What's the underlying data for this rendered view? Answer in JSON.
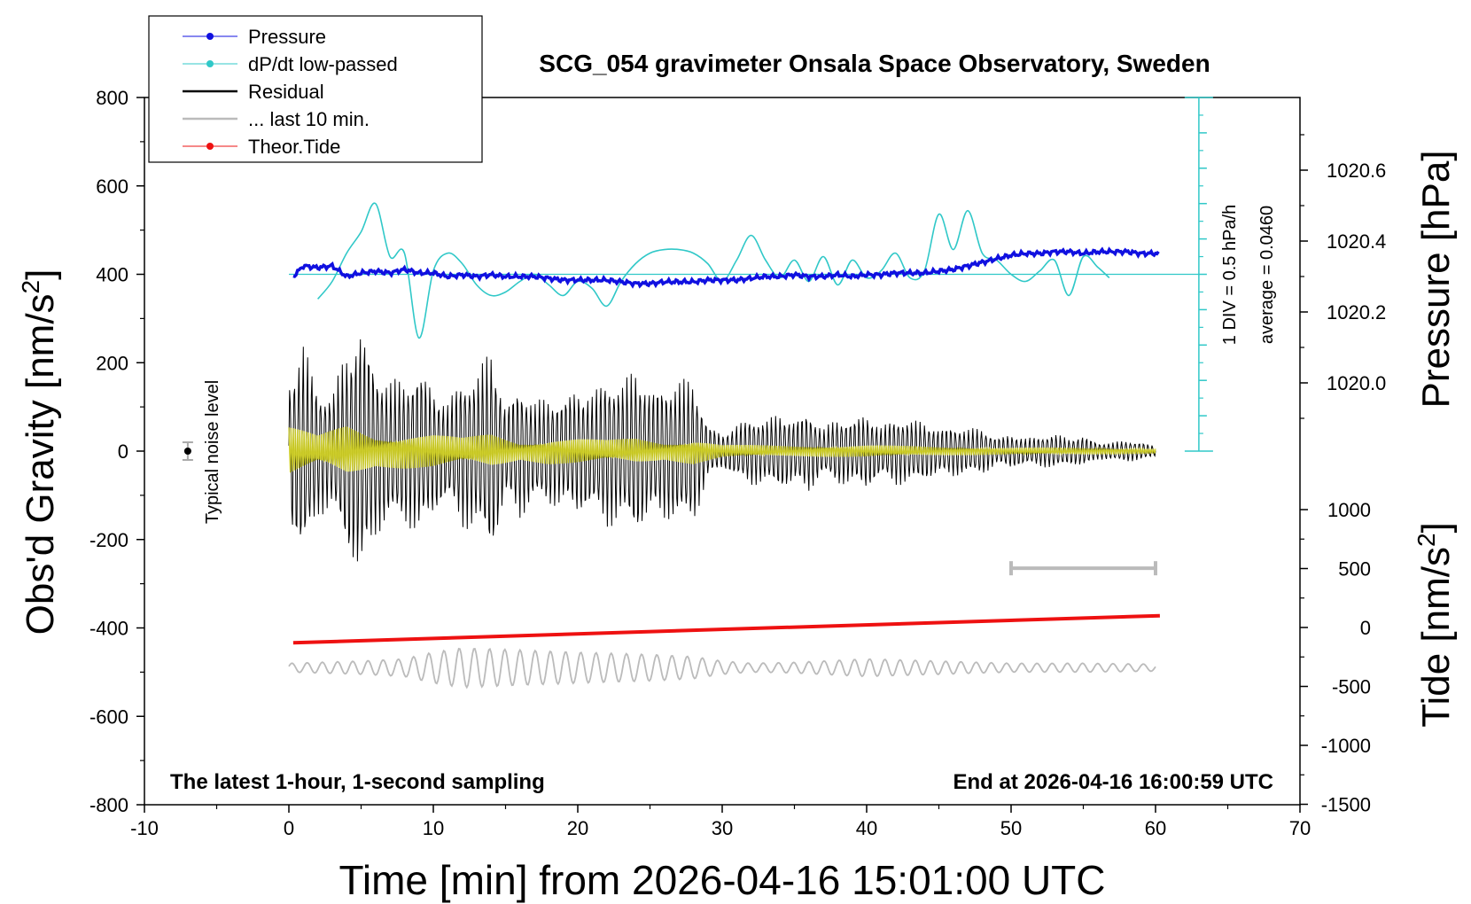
{
  "chart_data": {
    "type": "line",
    "title": "SCG_054 gravimeter Onsala Space Observatory, Sweden",
    "xlabel": "Time [min] from 2026-04-16 15:01:00 UTC",
    "ylabel_left": "Obs'd Gravity [nm/s",
    "ylabel_left_sup": "2",
    "ylabel_left_end": "]",
    "ylabel_right_top": "Pressure [hPa]",
    "ylabel_right_bottom": "Tide [nm/s",
    "ylabel_right_bottom_sup": "2",
    "ylabel_right_bottom_end": "]",
    "xlim": [
      -10,
      70
    ],
    "ylim": [
      -800,
      800
    ],
    "x_ticks": [
      "-10",
      "0",
      "10",
      "20",
      "30",
      "40",
      "50",
      "60",
      "70"
    ],
    "y_ticks": [
      "800",
      "600",
      "400",
      "200",
      "0",
      "-200",
      "-400",
      "-600",
      "-800"
    ],
    "pressure_ticks": [
      {
        "label": "1020.6",
        "value": 1020.6
      },
      {
        "label": "1020.4",
        "value": 1020.4
      },
      {
        "label": "1020.2",
        "value": 1020.2
      },
      {
        "label": "1020.0",
        "value": 1020.0
      }
    ],
    "tide_ticks": [
      {
        "label": "1000",
        "value": 1000
      },
      {
        "label": "500",
        "value": 500
      },
      {
        "label": "0",
        "value": 0
      },
      {
        "label": "-500",
        "value": -500
      },
      {
        "label": "-1000",
        "value": -1000
      },
      {
        "label": "-1500",
        "value": -1500
      }
    ],
    "legend": [
      {
        "name": "Pressure",
        "color": "#1010e0",
        "marker": true
      },
      {
        "name": "dP/dt low-passed",
        "color": "#30c8c8",
        "marker": true
      },
      {
        "name": "Residual",
        "color": "#000000",
        "marker": false
      },
      {
        "name": "... last 10 min.",
        "color": "#bbbbbb",
        "marker": false
      },
      {
        "name": "Theor.Tide",
        "color": "#ee1111",
        "marker": true
      }
    ],
    "legend_position": "top-left",
    "annotations": {
      "noise_label": "Typical noise level",
      "div_label": "1 DIV = 0.5 hPa/h",
      "average_label": "average = 0.0460",
      "bottom_left": "The latest 1-hour, 1-second sampling",
      "bottom_right": "End at 2026-04-16 16:00:59 UTC"
    },
    "series": [
      {
        "name": "Pressure",
        "color": "#1010e0",
        "unit": "hPa",
        "x": [
          0.3,
          1,
          2,
          3,
          4,
          5,
          6,
          7,
          8,
          9,
          10,
          11,
          12,
          13,
          14,
          15,
          16,
          17,
          18,
          19,
          20,
          21,
          22,
          23,
          24,
          25,
          26,
          27,
          28,
          29,
          30,
          31,
          32,
          33,
          34,
          35,
          36,
          37,
          38,
          39,
          40,
          41,
          42,
          43,
          44,
          45,
          46,
          47,
          48,
          49,
          50,
          51,
          52,
          53,
          54,
          55,
          56,
          57,
          58,
          59,
          60.3
        ],
        "y": [
          1020.3,
          1020.33,
          1020.325,
          1020.33,
          1020.3,
          1020.31,
          1020.315,
          1020.31,
          1020.32,
          1020.31,
          1020.31,
          1020.3,
          1020.305,
          1020.3,
          1020.305,
          1020.3,
          1020.3,
          1020.3,
          1020.295,
          1020.29,
          1020.29,
          1020.29,
          1020.29,
          1020.285,
          1020.28,
          1020.28,
          1020.285,
          1020.285,
          1020.285,
          1020.29,
          1020.29,
          1020.29,
          1020.295,
          1020.3,
          1020.3,
          1020.305,
          1020.3,
          1020.3,
          1020.305,
          1020.3,
          1020.305,
          1020.305,
          1020.31,
          1020.31,
          1020.31,
          1020.315,
          1020.32,
          1020.33,
          1020.34,
          1020.35,
          1020.36,
          1020.365,
          1020.365,
          1020.37,
          1020.37,
          1020.365,
          1020.37,
          1020.37,
          1020.37,
          1020.365,
          1020.365
        ]
      },
      {
        "name": "dP/dt low-passed",
        "color": "#30c8c8",
        "unit": "DIV (1 DIV = 0.5 hPa/h)",
        "baseline_gravity": 400,
        "x": [
          2,
          3,
          4,
          5,
          6,
          7,
          8,
          9,
          10,
          11,
          12,
          13,
          14,
          15,
          16,
          17,
          18,
          19,
          20,
          21,
          22,
          23,
          24,
          25,
          26,
          27,
          28,
          29,
          30,
          31,
          32,
          33,
          34,
          35,
          36,
          37,
          38,
          39,
          40,
          41,
          42,
          43,
          44,
          45,
          46,
          47,
          48,
          49,
          50,
          51,
          52,
          53,
          54,
          55,
          56,
          56.8
        ],
        "y": [
          -0.7,
          -0.2,
          0.6,
          1.2,
          2.0,
          0.5,
          0.6,
          -1.8,
          0.1,
          0.6,
          0.3,
          -0.3,
          -0.6,
          -0.5,
          -0.2,
          0.0,
          -0.3,
          -0.6,
          -0.2,
          -0.4,
          -0.9,
          -0.2,
          0.3,
          0.6,
          0.7,
          0.7,
          0.6,
          0.3,
          -0.2,
          0.4,
          1.1,
          0.4,
          -0.1,
          0.4,
          -0.2,
          0.5,
          -0.3,
          0.4,
          -0.1,
          0.1,
          0.6,
          -0.1,
          0.1,
          1.7,
          0.7,
          1.8,
          0.6,
          0.4,
          0.0,
          -0.2,
          0.1,
          0.4,
          -0.6,
          0.5,
          0.2,
          -0.1
        ]
      },
      {
        "name": "Residual",
        "color": "#000000",
        "unit": "nm/s2",
        "envelope_x": [
          0,
          1,
          2,
          3,
          4,
          5,
          6,
          7,
          8,
          9,
          10,
          11,
          12,
          13,
          14,
          15,
          16,
          17,
          18,
          19,
          20,
          21,
          22,
          23,
          24,
          25,
          26,
          27,
          28,
          29,
          30,
          31,
          32,
          33,
          34,
          35,
          36,
          37,
          38,
          39,
          40,
          41,
          42,
          43,
          44,
          45,
          46,
          47,
          48,
          49,
          50,
          51,
          52,
          53,
          54,
          55,
          56,
          57,
          58,
          59,
          60
        ],
        "envelope_amp": [
          170,
          250,
          150,
          130,
          240,
          290,
          200,
          160,
          170,
          190,
          150,
          110,
          180,
          170,
          250,
          100,
          160,
          110,
          130,
          120,
          150,
          130,
          180,
          150,
          200,
          140,
          160,
          160,
          170,
          60,
          40,
          60,
          80,
          70,
          90,
          70,
          95,
          50,
          80,
          70,
          90,
          55,
          80,
          70,
          70,
          50,
          60,
          50,
          55,
          30,
          40,
          30,
          35,
          40,
          30,
          35,
          20,
          20,
          25,
          20,
          12
        ]
      },
      {
        "name": "Yellow filtered residual",
        "color": "#cccc22",
        "unit": "nm/s2",
        "envelope_x": [
          0,
          2,
          4,
          6,
          8,
          10,
          12,
          14,
          16,
          18,
          20,
          22,
          24,
          26,
          28,
          30,
          35,
          40,
          45,
          50,
          55,
          60
        ],
        "envelope_amp": [
          60,
          35,
          60,
          35,
          40,
          40,
          30,
          40,
          20,
          30,
          30,
          25,
          30,
          20,
          30,
          15,
          12,
          14,
          10,
          8,
          8,
          6
        ]
      },
      {
        "name": "... last 10 min.",
        "color": "#bbbbbb",
        "unit": "nm/s2",
        "baseline_gravity": -490,
        "envelope_x": [
          0,
          5,
          8,
          10,
          12,
          16,
          20,
          25,
          28,
          30,
          32,
          35,
          40,
          45,
          50,
          55,
          60
        ],
        "envelope_amp": [
          10,
          15,
          20,
          35,
          45,
          40,
          35,
          30,
          25,
          15,
          10,
          12,
          20,
          15,
          10,
          10,
          8
        ]
      },
      {
        "name": "Theor.Tide",
        "color": "#ee1111",
        "unit": "nm/s2",
        "x": [
          0.3,
          60.3
        ],
        "y": [
          -130,
          100
        ]
      }
    ],
    "noise_marker": {
      "x": -7,
      "y": 0,
      "err": 20
    },
    "scale_bar": {
      "x0": 50,
      "x1": 60,
      "y": -265
    },
    "pressure_scale_axis": {
      "x": 63,
      "y_bottom": 0,
      "y_top": 800,
      "div_gravity": 80
    }
  }
}
